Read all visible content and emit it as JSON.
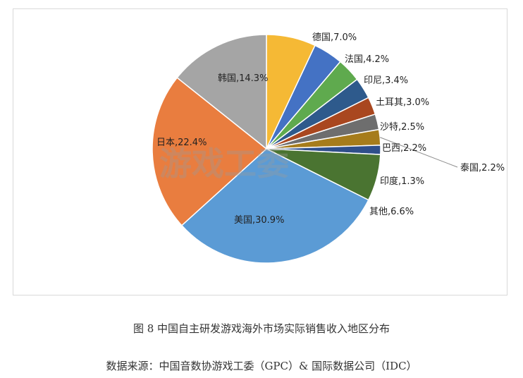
{
  "chart_data": {
    "type": "pie",
    "start_angle_deg": 0,
    "direction": "clockwise",
    "slices": [
      {
        "label": "德国,7.0%",
        "name": "德国",
        "value": 7.0,
        "color": "#F5B935"
      },
      {
        "label": "法国,4.2%",
        "name": "法国",
        "value": 4.2,
        "color": "#4472C4"
      },
      {
        "label": "印尼,3.4%",
        "name": "印尼",
        "value": 3.4,
        "color": "#5FAA4E"
      },
      {
        "label": "土耳其,3.0%",
        "name": "土耳其",
        "value": 3.0,
        "color": "#2E5A8C"
      },
      {
        "label": "沙特,2.5%",
        "name": "沙特",
        "value": 2.5,
        "color": "#A9471F"
      },
      {
        "label": "巴西,2.2%",
        "name": "巴西",
        "value": 2.2,
        "color": "#6E6E6E"
      },
      {
        "label": "泰国,2.2%",
        "name": "泰国",
        "value": 2.2,
        "color": "#A67C1B"
      },
      {
        "label": "印度,1.3%",
        "name": "印度",
        "value": 1.3,
        "color": "#2F4F8A"
      },
      {
        "label": "其他,6.6%",
        "name": "其他",
        "value": 6.6,
        "color": "#4A7431"
      },
      {
        "label": "美国,30.9%",
        "name": "美国",
        "value": 30.9,
        "color": "#5B9BD5"
      },
      {
        "label": "日本,22.4%",
        "name": "日本",
        "value": 22.4,
        "color": "#E97D3F"
      },
      {
        "label": "韩国,14.3%",
        "name": "韩国",
        "value": 14.3,
        "color": "#A5A5A5"
      }
    ],
    "watermark": "游戏工委"
  },
  "caption": "图 8  中国自主研发游戏海外市场实际销售收入地区分布",
  "source": "数据来源：中国音数协游戏工委（GPC）& 国际数据公司（IDC）"
}
